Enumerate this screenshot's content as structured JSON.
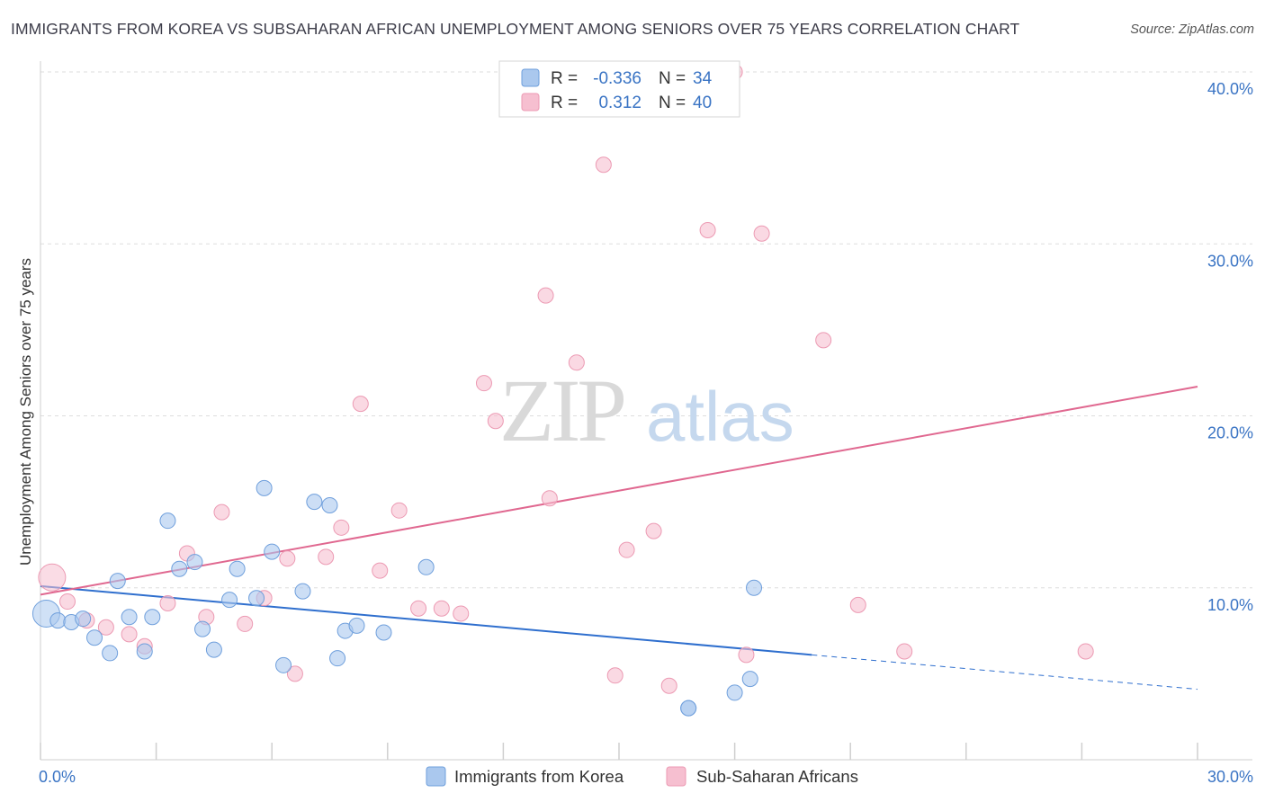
{
  "title": "IMMIGRANTS FROM KOREA VS SUBSAHARAN AFRICAN UNEMPLOYMENT AMONG SENIORS OVER 75 YEARS CORRELATION CHART",
  "source": "Source: ZipAtlas.com",
  "watermark": {
    "zip": "ZIP",
    "atlas": "atlas"
  },
  "colors": {
    "korea_fill": "#aac8ee",
    "korea_stroke": "#6f9fdc",
    "korea_line": "#2f6fce",
    "african_fill": "#f6bfd0",
    "african_stroke": "#ec9ab3",
    "african_line": "#e06890",
    "tick_text": "#3a74c4",
    "grid": "#dddddd"
  },
  "legend": {
    "rows": [
      {
        "r_label": "R =",
        "r_value": "-0.336",
        "n_label": "N =",
        "n_value": "34"
      },
      {
        "r_label": "R =",
        "r_value": "0.312",
        "n_label": "N =",
        "n_value": "40"
      }
    ]
  },
  "bottom_legend": [
    "Immigrants from Korea",
    "Sub-Saharan Africans"
  ],
  "chart_data": {
    "type": "scatter",
    "title": "IMMIGRANTS FROM KOREA VS SUBSAHARAN AFRICAN UNEMPLOYMENT AMONG SENIORS OVER 75 YEARS CORRELATION CHART",
    "xlabel": "",
    "ylabel": "Unemployment Among Seniors over 75 years",
    "xlim": [
      0,
      30
    ],
    "ylim": [
      0,
      40
    ],
    "x_tick_labels": [
      "0.0%",
      "30.0%"
    ],
    "y_ticks": [
      10,
      20,
      30,
      40
    ],
    "y_tick_labels": [
      "10.0%",
      "20.0%",
      "30.0%",
      "40.0%"
    ],
    "grid": true,
    "legend_position": "top-center",
    "series": [
      {
        "name": "Immigrants from Korea",
        "r": -0.336,
        "n": 34,
        "trend": {
          "x0": 0,
          "y0": 10.1,
          "x1": 20.0,
          "y1": 6.1,
          "dashed_to_x": 30,
          "dashed_to_y": 4.1
        },
        "points": [
          [
            0.15,
            8.5,
            "big"
          ],
          [
            0.45,
            8.1
          ],
          [
            0.8,
            8.0
          ],
          [
            1.1,
            8.2
          ],
          [
            1.4,
            7.1
          ],
          [
            1.8,
            6.2
          ],
          [
            2.0,
            10.4
          ],
          [
            2.3,
            8.3
          ],
          [
            2.7,
            6.3
          ],
          [
            2.9,
            8.3
          ],
          [
            3.3,
            13.9
          ],
          [
            3.6,
            11.1
          ],
          [
            4.0,
            11.5
          ],
          [
            4.2,
            7.6
          ],
          [
            4.5,
            6.4
          ],
          [
            4.9,
            9.3
          ],
          [
            5.1,
            11.1
          ],
          [
            5.6,
            9.4
          ],
          [
            5.8,
            15.8
          ],
          [
            6.0,
            12.1
          ],
          [
            6.3,
            5.5
          ],
          [
            6.8,
            9.8
          ],
          [
            7.1,
            15.0
          ],
          [
            7.5,
            14.8
          ],
          [
            7.7,
            5.9
          ],
          [
            7.9,
            7.5
          ],
          [
            8.2,
            7.8
          ],
          [
            8.9,
            7.4
          ],
          [
            10.0,
            11.2
          ],
          [
            16.8,
            3.0
          ],
          [
            16.8,
            3.0
          ],
          [
            18.0,
            3.9
          ],
          [
            18.4,
            4.7
          ],
          [
            18.5,
            10.0
          ]
        ]
      },
      {
        "name": "Sub-Saharan Africans",
        "r": 0.312,
        "n": 40,
        "trend": {
          "x0": 0,
          "y0": 9.6,
          "x1": 30,
          "y1": 21.7
        },
        "points": [
          [
            0.3,
            10.6,
            "big"
          ],
          [
            0.7,
            9.2
          ],
          [
            1.2,
            8.1
          ],
          [
            1.7,
            7.7
          ],
          [
            2.3,
            7.3
          ],
          [
            2.7,
            6.6
          ],
          [
            3.3,
            9.1
          ],
          [
            3.8,
            12.0
          ],
          [
            4.3,
            8.3
          ],
          [
            4.7,
            14.4
          ],
          [
            5.3,
            7.9
          ],
          [
            5.8,
            9.4
          ],
          [
            6.4,
            11.7
          ],
          [
            6.6,
            5.0
          ],
          [
            7.4,
            11.8
          ],
          [
            7.8,
            13.5
          ],
          [
            8.3,
            20.7
          ],
          [
            8.8,
            11.0
          ],
          [
            9.3,
            14.5
          ],
          [
            9.8,
            8.8
          ],
          [
            10.4,
            8.8
          ],
          [
            10.9,
            8.5
          ],
          [
            11.5,
            21.9
          ],
          [
            11.8,
            19.7
          ],
          [
            13.1,
            27.0
          ],
          [
            13.2,
            15.2
          ],
          [
            13.9,
            23.1
          ],
          [
            14.6,
            34.6
          ],
          [
            14.9,
            4.9
          ],
          [
            15.2,
            12.2
          ],
          [
            15.9,
            13.3
          ],
          [
            16.3,
            4.3
          ],
          [
            17.3,
            30.8
          ],
          [
            18.0,
            40.0
          ],
          [
            18.3,
            6.1
          ],
          [
            18.7,
            30.6
          ],
          [
            20.3,
            24.4
          ],
          [
            21.2,
            9.0
          ],
          [
            22.4,
            6.3
          ],
          [
            27.1,
            6.3
          ]
        ]
      }
    ]
  }
}
